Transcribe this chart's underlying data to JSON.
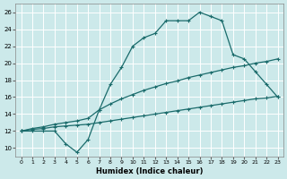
{
  "bg_color": "#cce9ea",
  "line_color": "#1a6b6b",
  "grid_color": "#ffffff",
  "xlabel": "Humidex (Indice chaleur)",
  "xlim": [
    -0.5,
    23.5
  ],
  "ylim": [
    9,
    27
  ],
  "xticks": [
    0,
    1,
    2,
    3,
    4,
    5,
    6,
    7,
    8,
    9,
    10,
    11,
    12,
    13,
    14,
    15,
    16,
    17,
    18,
    19,
    20,
    21,
    22,
    23
  ],
  "yticks": [
    10,
    12,
    14,
    16,
    18,
    20,
    22,
    24,
    26
  ],
  "curve1_x": [
    0,
    1,
    2,
    3,
    4,
    5,
    6,
    7,
    8,
    9,
    10,
    11,
    12,
    13,
    14,
    15,
    16,
    17,
    18,
    19,
    20,
    21,
    22,
    23
  ],
  "curve1_y": [
    12,
    12,
    12,
    12,
    10.5,
    9.5,
    11,
    14.5,
    17.5,
    19.5,
    22,
    23,
    23.5,
    25,
    25,
    25,
    26,
    25.5,
    25,
    21,
    20.5,
    19,
    17.5,
    16
  ],
  "curve2_x": [
    0,
    1,
    2,
    3,
    4,
    5,
    6,
    7,
    8,
    9,
    10,
    11,
    12,
    13,
    14,
    15,
    16,
    17,
    18,
    19,
    20,
    21,
    22,
    23
  ],
  "curve2_y": [
    12,
    12.3,
    12.5,
    12.8,
    13.0,
    13.2,
    13.5,
    14.5,
    15.2,
    15.8,
    16.3,
    16.8,
    17.2,
    17.6,
    17.9,
    18.3,
    18.6,
    18.9,
    19.2,
    19.5,
    19.7,
    20.0,
    20.2,
    20.5
  ],
  "curve3_x": [
    0,
    1,
    2,
    3,
    4,
    5,
    6,
    7,
    8,
    9,
    10,
    11,
    12,
    13,
    14,
    15,
    16,
    17,
    18,
    19,
    20,
    21,
    22,
    23
  ],
  "curve3_y": [
    12,
    12.2,
    12.3,
    12.5,
    12.6,
    12.7,
    12.8,
    13.0,
    13.2,
    13.4,
    13.6,
    13.8,
    14.0,
    14.2,
    14.4,
    14.6,
    14.8,
    15.0,
    15.2,
    15.4,
    15.6,
    15.8,
    15.9,
    16.1
  ],
  "marker": "+"
}
